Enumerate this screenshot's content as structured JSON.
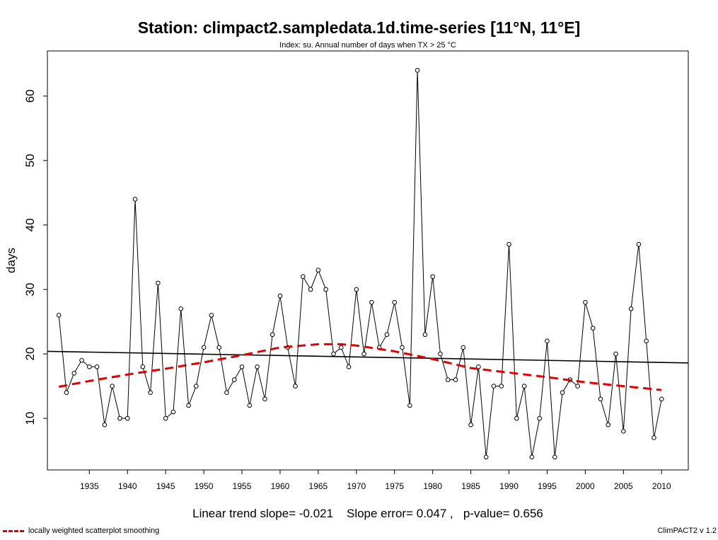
{
  "title": "Station: climpact2.sampledata.1d.time-series [11°N, 11°E]",
  "subtitle": "Index: su. Annual number of days when TX > 25 °C",
  "stats": {
    "slope_label": "Linear trend slope=",
    "slope_value": "-0.021",
    "error_label": "Slope error=",
    "error_value": "0.047 ,",
    "pvalue_label": "p-value=",
    "pvalue_value": "0.656"
  },
  "legend": {
    "label": "locally weighted scatterplot smoothing",
    "color": "#e00000"
  },
  "version": "ClimPACT2 v 1.2",
  "chart_data": {
    "type": "line",
    "ylabel": "days",
    "xlabel": "",
    "xlim": [
      1929.5,
      2013.5
    ],
    "ylim": [
      2,
      67
    ],
    "x_ticks": [
      1935,
      1940,
      1945,
      1950,
      1955,
      1960,
      1965,
      1970,
      1975,
      1980,
      1985,
      1990,
      1995,
      2000,
      2005,
      2010
    ],
    "y_ticks": [
      10,
      20,
      30,
      40,
      50,
      60
    ],
    "series": [
      {
        "style": "line-points",
        "color": "#000000",
        "x": [
          1931,
          1932,
          1933,
          1934,
          1935,
          1936,
          1937,
          1938,
          1939,
          1940,
          1941,
          1942,
          1943,
          1944,
          1945,
          1946,
          1947,
          1948,
          1949,
          1950,
          1951,
          1952,
          1953,
          1954,
          1955,
          1956,
          1957,
          1958,
          1959,
          1960,
          1961,
          1962,
          1963,
          1964,
          1965,
          1966,
          1967,
          1968,
          1969,
          1970,
          1971,
          1972,
          1973,
          1974,
          1975,
          1976,
          1977,
          1978,
          1979,
          1980,
          1981,
          1982,
          1983,
          1984,
          1985,
          1986,
          1987,
          1988,
          1989,
          1990,
          1991,
          1992,
          1993,
          1994,
          1995,
          1996,
          1997,
          1998,
          1999,
          2000,
          2001,
          2002,
          2003,
          2004,
          2005,
          2006,
          2007,
          2008,
          2009,
          2010
        ],
        "y": [
          26,
          14,
          17,
          19,
          18,
          18,
          9,
          15,
          10,
          10,
          44,
          18,
          14,
          31,
          10,
          11,
          27,
          12,
          15,
          21,
          26,
          21,
          14,
          16,
          18,
          12,
          18,
          13,
          23,
          29,
          21,
          15,
          32,
          30,
          33,
          30,
          20,
          21,
          18,
          30,
          20,
          28,
          21,
          23,
          28,
          21,
          12,
          64,
          23,
          32,
          20,
          16,
          16,
          21,
          9,
          18,
          4,
          15,
          15,
          37,
          10,
          15,
          4,
          10,
          22,
          4,
          14,
          16,
          15,
          28,
          24,
          13,
          9,
          20,
          8,
          27,
          37,
          22,
          7,
          13
        ]
      },
      {
        "name": "Linear trend",
        "style": "line",
        "color": "#000000",
        "x": [
          1929.5,
          2013.5
        ],
        "y": [
          20.4,
          18.6
        ]
      },
      {
        "name": "locally weighted scatterplot smoothing",
        "style": "dashed",
        "color": "#e00000",
        "x": [
          1931,
          1935,
          1940,
          1945,
          1950,
          1955,
          1960,
          1965,
          1968,
          1970,
          1975,
          1980,
          1985,
          1990,
          1995,
          2000,
          2005,
          2010
        ],
        "y": [
          14.9,
          15.8,
          16.8,
          17.7,
          18.7,
          19.8,
          21.0,
          21.5,
          21.5,
          21.3,
          20.4,
          19.2,
          17.8,
          17.1,
          16.4,
          15.6,
          15.0,
          14.4
        ]
      }
    ]
  }
}
